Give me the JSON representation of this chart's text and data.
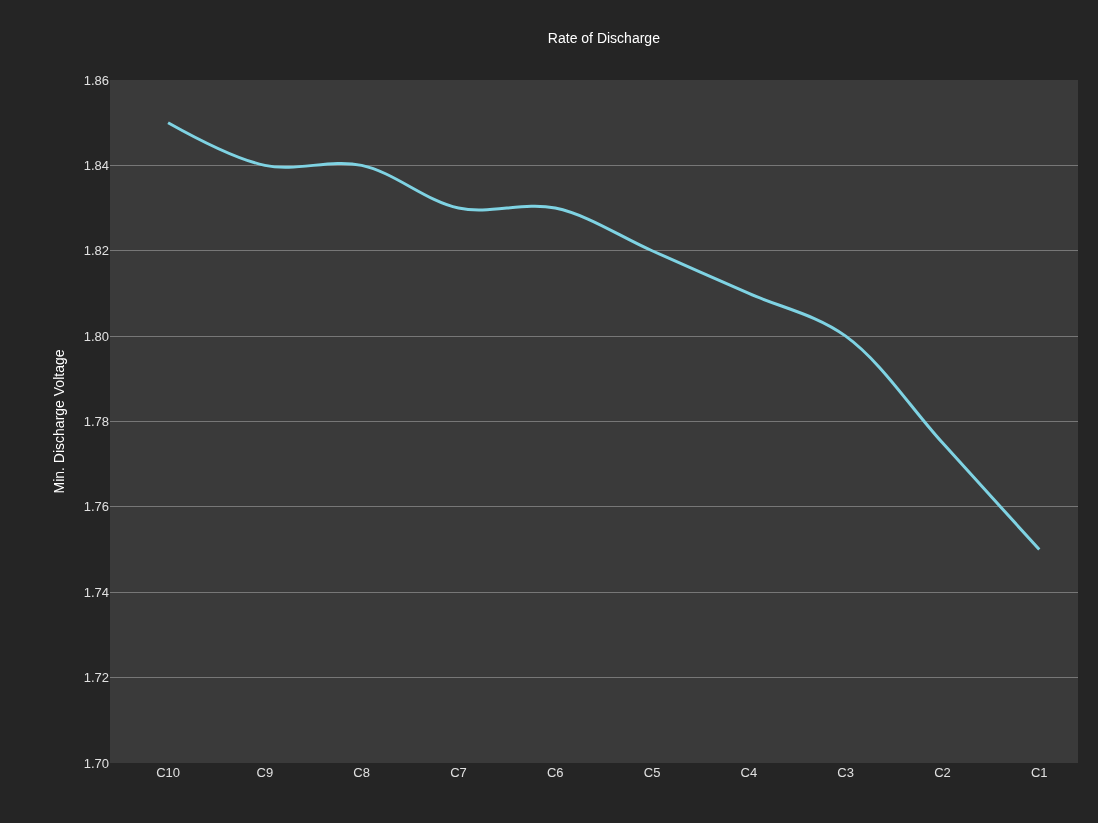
{
  "chart_data": {
    "type": "line",
    "title": "Rate of Discharge",
    "ylabel": "Min. Discharge Voltage",
    "categories": [
      "C10",
      "C9",
      "C8",
      "C7",
      "C6",
      "C5",
      "C4",
      "C3",
      "C2",
      "C1"
    ],
    "series": [
      {
        "color": "#7fd3e3",
        "values": [
          1.85,
          1.84,
          1.84,
          1.83,
          1.83,
          1.82,
          1.81,
          1.8,
          1.775,
          1.75
        ]
      }
    ],
    "ylim": [
      1.7,
      1.86
    ],
    "yticks": [
      {
        "value": 1.7,
        "label": "1.70"
      },
      1.72,
      1.74,
      1.76,
      1.78,
      {
        "value": 1.8,
        "label": "1.80"
      },
      1.82,
      1.84,
      1.86
    ],
    "grid": "y",
    "legend": false,
    "marker": "none",
    "line_style": "solid"
  }
}
